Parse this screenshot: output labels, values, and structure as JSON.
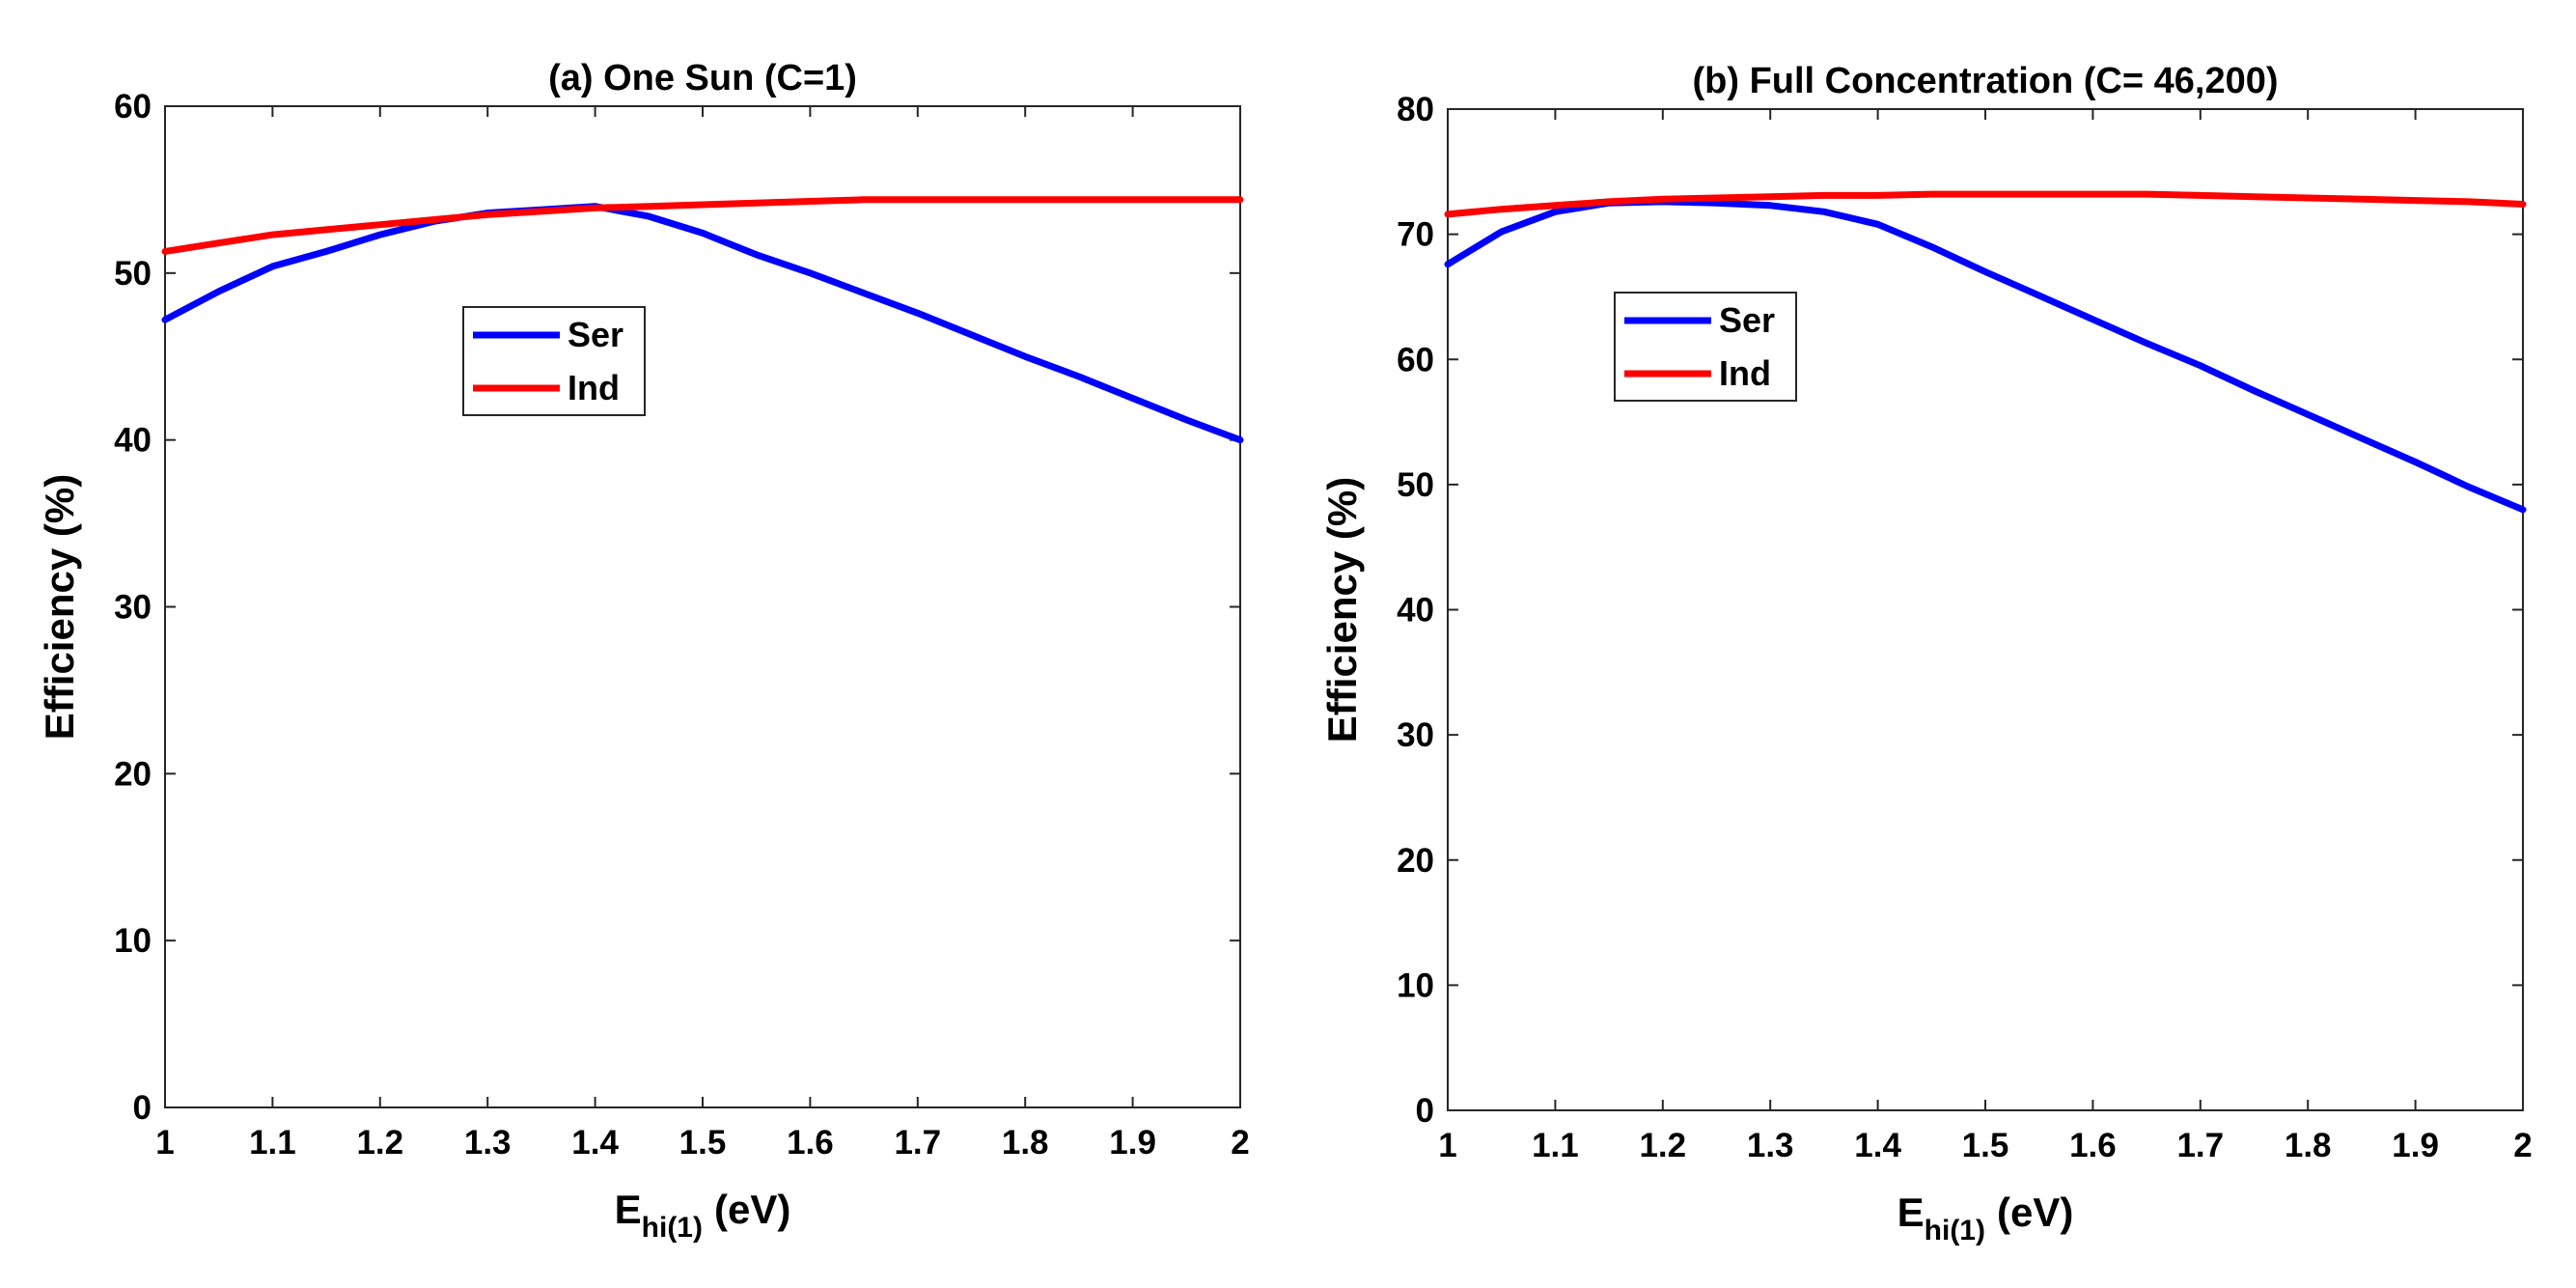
{
  "chart_data": [
    {
      "type": "line",
      "title": "(a) One Sun (C=1)",
      "xlabel": {
        "main": "E",
        "sub": "hi(1)",
        "unit": "(eV)"
      },
      "ylabel": "Efficiency (%)",
      "xlim": [
        1,
        2
      ],
      "ylim": [
        0,
        60
      ],
      "xticks": [
        1,
        1.1,
        1.2,
        1.3,
        1.4,
        1.5,
        1.6,
        1.7,
        1.8,
        1.9,
        2
      ],
      "xtick_labels": [
        "1",
        "1.1",
        "1.2",
        "1.3",
        "1.4",
        "1.5",
        "1.6",
        "1.7",
        "1.8",
        "1.9",
        "2"
      ],
      "yticks": [
        0,
        10,
        20,
        30,
        40,
        50,
        60
      ],
      "ytick_labels": [
        "0",
        "10",
        "20",
        "30",
        "40",
        "50",
        "60"
      ],
      "legend_location": "upper-left-inside",
      "x": [
        1.0,
        1.05,
        1.1,
        1.15,
        1.2,
        1.25,
        1.3,
        1.35,
        1.4,
        1.45,
        1.5,
        1.55,
        1.6,
        1.65,
        1.7,
        1.75,
        1.8,
        1.85,
        1.9,
        1.95,
        2.0
      ],
      "series": [
        {
          "name": "Ser",
          "color": "#0000ff",
          "values": [
            47.2,
            48.9,
            50.4,
            51.3,
            52.3,
            53.1,
            53.6,
            53.8,
            54.0,
            53.4,
            52.4,
            51.1,
            50.0,
            48.8,
            47.6,
            46.3,
            45.0,
            43.8,
            42.5,
            41.2,
            40.0
          ]
        },
        {
          "name": "Ind",
          "color": "#ff0000",
          "values": [
            51.3,
            51.8,
            52.3,
            52.6,
            52.9,
            53.2,
            53.5,
            53.7,
            53.9,
            54.0,
            54.1,
            54.2,
            54.3,
            54.4,
            54.4,
            54.4,
            54.4,
            54.4,
            54.4,
            54.4,
            54.4
          ]
        }
      ]
    },
    {
      "type": "line",
      "title": "(b) Full Concentration (C= 46,200)",
      "xlabel": {
        "main": "E",
        "sub": "hi(1)",
        "unit": "(eV)"
      },
      "ylabel": "Efficiency (%)",
      "xlim": [
        1,
        2
      ],
      "ylim": [
        0,
        80
      ],
      "xticks": [
        1,
        1.1,
        1.2,
        1.3,
        1.4,
        1.5,
        1.6,
        1.7,
        1.8,
        1.9,
        2
      ],
      "xtick_labels": [
        "1",
        "1.1",
        "1.2",
        "1.3",
        "1.4",
        "1.5",
        "1.6",
        "1.7",
        "1.8",
        "1.9",
        "2"
      ],
      "yticks": [
        0,
        10,
        20,
        30,
        40,
        50,
        60,
        70,
        80
      ],
      "ytick_labels": [
        "0",
        "10",
        "20",
        "30",
        "40",
        "50",
        "60",
        "70",
        "80"
      ],
      "legend_location": "upper-left-inside",
      "x": [
        1.0,
        1.05,
        1.1,
        1.15,
        1.2,
        1.25,
        1.3,
        1.35,
        1.4,
        1.45,
        1.5,
        1.55,
        1.6,
        1.65,
        1.7,
        1.75,
        1.8,
        1.85,
        1.9,
        1.95,
        2.0
      ],
      "series": [
        {
          "name": "Ser",
          "color": "#0000ff",
          "values": [
            67.6,
            70.2,
            71.8,
            72.5,
            72.6,
            72.5,
            72.3,
            71.8,
            70.8,
            69.0,
            67.0,
            65.1,
            63.2,
            61.3,
            59.5,
            57.5,
            55.6,
            53.7,
            51.8,
            49.8,
            48.0
          ]
        },
        {
          "name": "Ind",
          "color": "#ff0000",
          "values": [
            71.6,
            72.0,
            72.3,
            72.6,
            72.8,
            72.9,
            73.0,
            73.1,
            73.1,
            73.2,
            73.2,
            73.2,
            73.2,
            73.2,
            73.1,
            73.0,
            72.9,
            72.8,
            72.7,
            72.6,
            72.4
          ]
        }
      ]
    }
  ]
}
